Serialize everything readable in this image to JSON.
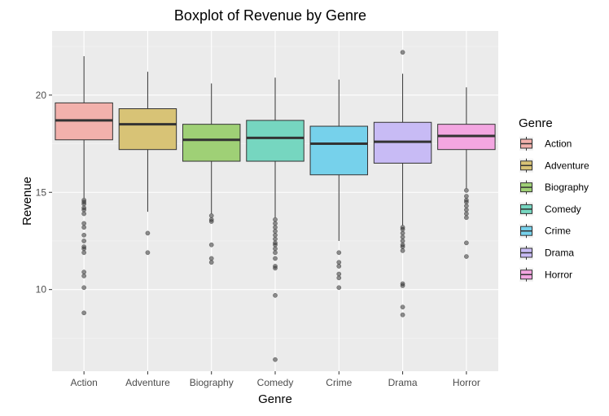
{
  "chart_data": {
    "type": "box",
    "title": "Boxplot of Revenue by Genre",
    "xlabel": "Genre",
    "ylabel": "Revenue",
    "ylim": [
      5.8,
      23.3
    ],
    "yticks": [
      10,
      15,
      20
    ],
    "yticks_labels": [
      "10",
      "15",
      "20"
    ],
    "grid": true,
    "legend": {
      "title": "Genre",
      "position": "right"
    },
    "categories": [
      "Action",
      "Adventure",
      "Biography",
      "Comedy",
      "Crime",
      "Drama",
      "Horror"
    ],
    "colors": [
      "#F8766D",
      "#C49A00",
      "#53B400",
      "#00C094",
      "#00B6EB",
      "#A58AFF",
      "#FB61D7"
    ],
    "boxes": [
      {
        "category": "Action",
        "whisker_low": 14.7,
        "q1": 17.7,
        "median": 18.7,
        "q3": 19.6,
        "whisker_high": 22.0,
        "outliers": [
          14.6,
          14.5,
          14.4,
          14.2,
          14.1,
          13.9,
          13.4,
          13.2,
          12.8,
          12.5,
          12.2,
          12.1,
          11.9,
          10.9,
          10.7,
          10.1,
          8.8
        ]
      },
      {
        "category": "Adventure",
        "whisker_low": 14.0,
        "q1": 17.2,
        "median": 18.5,
        "q3": 19.3,
        "whisker_high": 21.2,
        "outliers": [
          12.9,
          11.9
        ]
      },
      {
        "category": "Biography",
        "whisker_low": 13.9,
        "q1": 16.6,
        "median": 17.7,
        "q3": 18.5,
        "whisker_high": 20.6,
        "outliers": [
          13.8,
          13.6,
          13.5,
          12.3,
          11.6,
          11.4
        ]
      },
      {
        "category": "Comedy",
        "whisker_low": 13.7,
        "q1": 16.6,
        "median": 17.8,
        "q3": 18.7,
        "whisker_high": 20.9,
        "outliers": [
          13.6,
          13.4,
          13.2,
          13.0,
          12.8,
          12.6,
          12.4,
          12.3,
          12.1,
          11.9,
          11.6,
          11.2,
          11.1,
          9.7,
          6.4
        ]
      },
      {
        "category": "Crime",
        "whisker_low": 12.5,
        "q1": 15.9,
        "median": 17.5,
        "q3": 18.4,
        "whisker_high": 20.8,
        "outliers": [
          11.9,
          11.4,
          11.2,
          10.8,
          10.6,
          10.1
        ]
      },
      {
        "category": "Drama",
        "whisker_low": 13.3,
        "q1": 16.5,
        "median": 17.6,
        "q3": 18.6,
        "whisker_high": 21.1,
        "outliers": [
          13.2,
          13.1,
          12.9,
          12.7,
          12.5,
          12.3,
          12.2,
          12.0,
          10.3,
          10.2,
          9.1,
          8.7,
          22.2
        ]
      },
      {
        "category": "Horror",
        "whisker_low": 15.2,
        "q1": 17.2,
        "median": 17.9,
        "q3": 18.5,
        "whisker_high": 20.4,
        "outliers": [
          15.1,
          14.8,
          14.6,
          14.5,
          14.3,
          14.1,
          13.9,
          13.7,
          12.4,
          11.7
        ]
      }
    ]
  }
}
